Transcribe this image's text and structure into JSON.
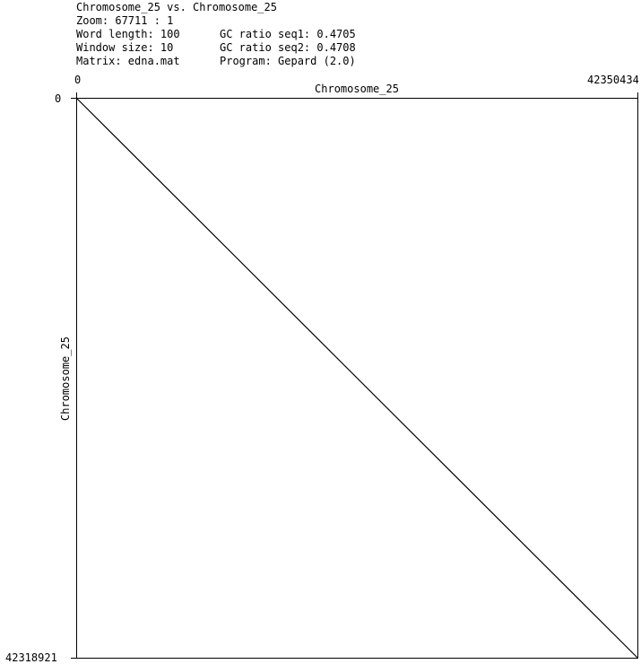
{
  "header": {
    "title": "Chromosome_25 vs. Chromosome_25",
    "zoom": "Zoom: 67711 : 1",
    "word_length": "Word length: 100",
    "window_size": "Window size: 10",
    "matrix": "Matrix: edna.mat",
    "gc_seq1": "GC ratio seq1: 0.4705",
    "gc_seq2": "GC ratio seq2: 0.4708",
    "program": "Program: Gepard (2.0)"
  },
  "chart_data": {
    "type": "scatter",
    "title": "Chromosome_25 vs. Chromosome_25",
    "xlabel": "Chromosome_25",
    "ylabel": "Chromosome_25",
    "xlim": [
      0,
      42350434
    ],
    "ylim": [
      0,
      42318921
    ],
    "x_tick_labels": [
      "0",
      "42350434"
    ],
    "y_tick_labels": [
      "0",
      "42318921"
    ],
    "y_inverted": true,
    "grid": false,
    "series": [
      {
        "points": [
          [
            0,
            0
          ],
          [
            42350434,
            42318921
          ]
        ]
      }
    ],
    "line_color": "#000000"
  }
}
